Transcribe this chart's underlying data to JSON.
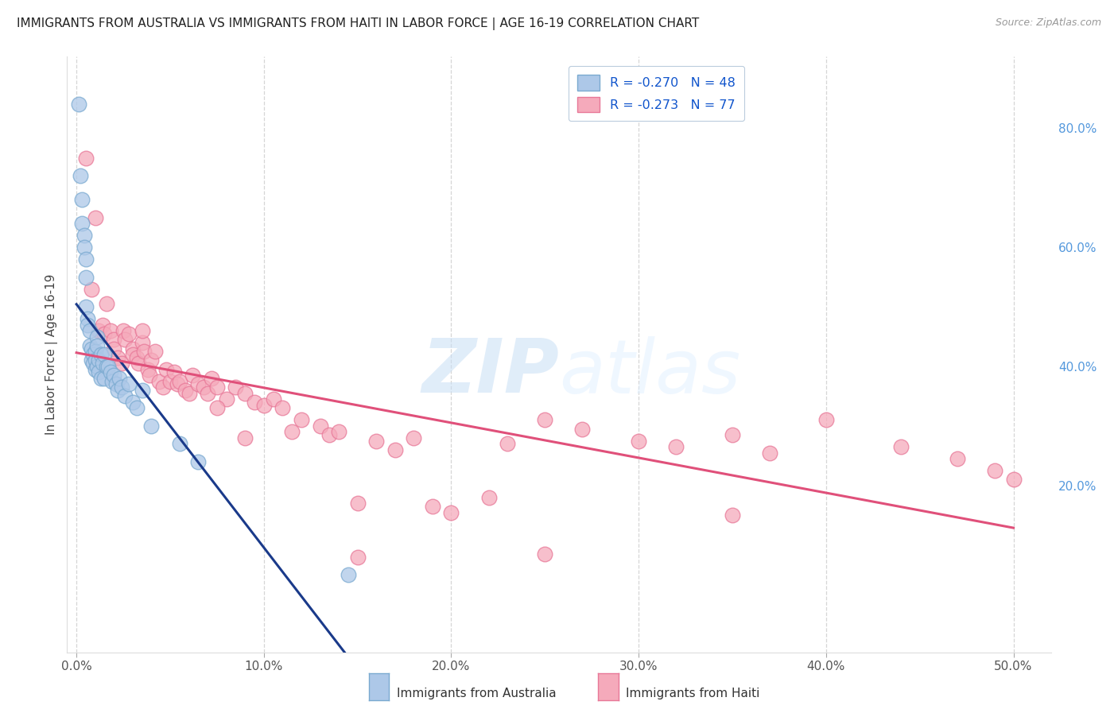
{
  "title": "IMMIGRANTS FROM AUSTRALIA VS IMMIGRANTS FROM HAITI IN LABOR FORCE | AGE 16-19 CORRELATION CHART",
  "source": "Source: ZipAtlas.com",
  "ylabel": "In Labor Force | Age 16-19",
  "x_tick_labels": [
    "0.0%",
    "10.0%",
    "20.0%",
    "30.0%",
    "40.0%",
    "50.0%"
  ],
  "x_tick_values": [
    0.0,
    10.0,
    20.0,
    30.0,
    40.0,
    50.0
  ],
  "y_tick_labels_right": [
    "20.0%",
    "40.0%",
    "60.0%",
    "80.0%"
  ],
  "y_tick_values_right": [
    20.0,
    40.0,
    60.0,
    80.0
  ],
  "xlim": [
    -0.5,
    52.0
  ],
  "ylim": [
    -8.0,
    92.0
  ],
  "legend_r1": "R = -0.270",
  "legend_n1": "N = 48",
  "legend_r2": "R = -0.273",
  "legend_n2": "N = 77",
  "australia_color": "#adc8e8",
  "haiti_color": "#f5aabb",
  "australia_edge": "#7aaad0",
  "haiti_edge": "#e87898",
  "trendline_australia_color": "#1a3a8a",
  "trendline_haiti_color": "#e0507a",
  "trendline_dashed_color": "#b0b8c8",
  "australia_x": [
    0.1,
    0.2,
    0.3,
    0.3,
    0.4,
    0.4,
    0.5,
    0.5,
    0.5,
    0.6,
    0.6,
    0.7,
    0.7,
    0.8,
    0.8,
    0.9,
    0.9,
    1.0,
    1.0,
    1.0,
    1.1,
    1.1,
    1.1,
    1.2,
    1.2,
    1.3,
    1.3,
    1.4,
    1.5,
    1.5,
    1.6,
    1.7,
    1.8,
    1.9,
    2.0,
    2.1,
    2.2,
    2.3,
    2.4,
    2.6,
    2.8,
    3.0,
    3.2,
    3.5,
    4.0,
    5.5,
    6.5,
    14.5
  ],
  "australia_y": [
    84.0,
    72.0,
    68.0,
    64.0,
    62.0,
    60.0,
    58.0,
    55.0,
    50.0,
    48.0,
    47.0,
    46.0,
    43.5,
    43.0,
    41.0,
    42.0,
    40.5,
    42.5,
    41.0,
    39.5,
    45.0,
    43.5,
    40.0,
    41.0,
    39.0,
    42.0,
    38.0,
    40.5,
    42.0,
    38.0,
    40.0,
    40.0,
    39.0,
    37.5,
    38.5,
    37.0,
    36.0,
    38.0,
    36.5,
    35.0,
    37.0,
    34.0,
    33.0,
    36.0,
    30.0,
    27.0,
    24.0,
    5.0
  ],
  "haiti_x": [
    0.5,
    0.8,
    1.0,
    1.2,
    1.4,
    1.5,
    1.6,
    1.8,
    2.0,
    2.0,
    2.2,
    2.4,
    2.5,
    2.6,
    2.8,
    3.0,
    3.0,
    3.2,
    3.3,
    3.5,
    3.6,
    3.8,
    3.9,
    4.0,
    4.2,
    4.4,
    4.6,
    4.8,
    5.0,
    5.2,
    5.4,
    5.5,
    5.8,
    6.0,
    6.2,
    6.5,
    6.8,
    7.0,
    7.2,
    7.5,
    8.0,
    8.5,
    9.0,
    9.5,
    10.0,
    10.5,
    11.0,
    11.5,
    12.0,
    13.0,
    13.5,
    14.0,
    15.0,
    16.0,
    17.0,
    18.0,
    19.0,
    20.0,
    22.0,
    23.0,
    25.0,
    27.0,
    30.0,
    32.0,
    35.0,
    37.0,
    40.0,
    44.0,
    47.0,
    49.0,
    50.0,
    3.5,
    7.5,
    9.0,
    15.0,
    25.0,
    35.0
  ],
  "haiti_y": [
    75.0,
    53.0,
    65.0,
    46.0,
    47.0,
    45.5,
    50.5,
    46.0,
    44.5,
    43.0,
    41.5,
    40.5,
    46.0,
    44.5,
    45.5,
    43.0,
    42.0,
    41.5,
    40.5,
    44.0,
    42.5,
    39.5,
    38.5,
    41.0,
    42.5,
    37.5,
    36.5,
    39.5,
    37.5,
    39.0,
    37.0,
    37.5,
    36.0,
    35.5,
    38.5,
    37.0,
    36.5,
    35.5,
    38.0,
    36.5,
    34.5,
    36.5,
    35.5,
    34.0,
    33.5,
    34.5,
    33.0,
    29.0,
    31.0,
    30.0,
    28.5,
    29.0,
    17.0,
    27.5,
    26.0,
    28.0,
    16.5,
    15.5,
    18.0,
    27.0,
    31.0,
    29.5,
    27.5,
    26.5,
    28.5,
    25.5,
    31.0,
    26.5,
    24.5,
    22.5,
    21.0,
    46.0,
    33.0,
    28.0,
    8.0,
    8.5,
    15.0
  ],
  "watermark_zip": "ZIP",
  "watermark_atlas": "atlas",
  "legend_label_australia": "Immigrants from Australia",
  "legend_label_haiti": "Immigrants from Haiti"
}
